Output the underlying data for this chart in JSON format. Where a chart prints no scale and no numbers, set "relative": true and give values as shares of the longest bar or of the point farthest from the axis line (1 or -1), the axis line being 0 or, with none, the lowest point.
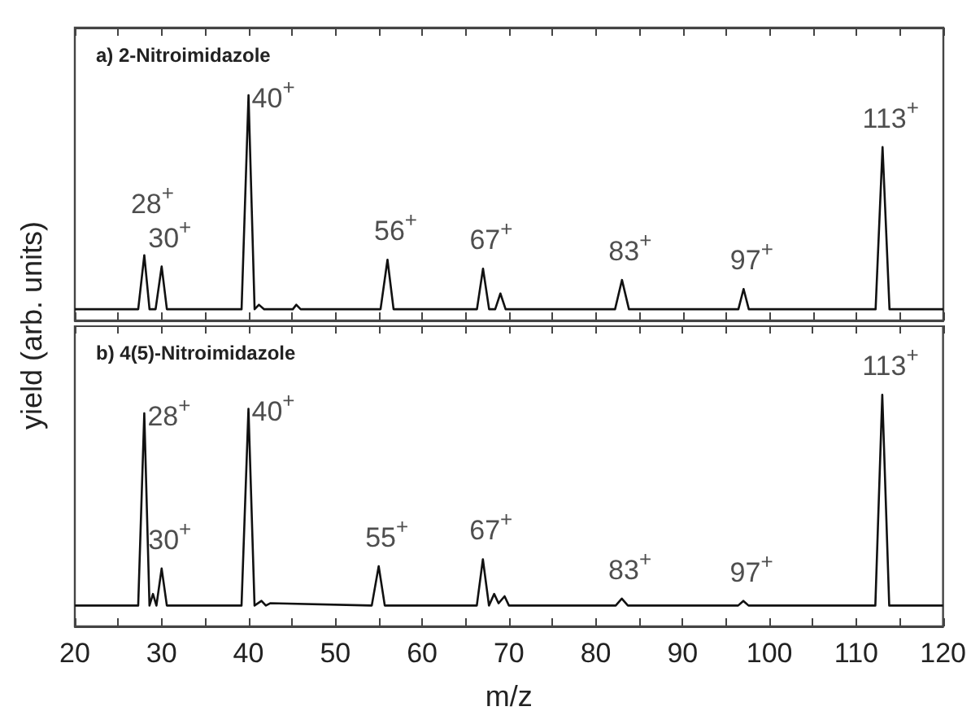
{
  "chart_data": [
    {
      "type": "line",
      "title": "a) 2-Nitroimidazole",
      "ylabel": "yield (arb. units)",
      "relative": true,
      "color": "#111111",
      "grid": false,
      "marker": "none",
      "line_style": "solid",
      "tick_labels": false,
      "xlim": [
        20,
        120
      ],
      "xticks": [
        20,
        {
          "value": 25,
          "label": null
        },
        30,
        {
          "value": 35,
          "label": null
        },
        40,
        {
          "value": 45,
          "label": null
        },
        50,
        {
          "value": 55,
          "label": null
        },
        60,
        {
          "value": 65,
          "label": null
        },
        70,
        {
          "value": 75,
          "label": null
        },
        80,
        {
          "value": 85,
          "label": null
        },
        90,
        {
          "value": 95,
          "label": null
        },
        100,
        {
          "value": 105,
          "label": null
        },
        110,
        {
          "value": 115,
          "label": null
        },
        120
      ],
      "x": [
        20,
        27.3,
        28,
        28.6,
        29.3,
        30,
        30.6,
        39.2,
        40,
        40.7,
        41.2,
        41.8,
        45.1,
        45.5,
        46,
        55.2,
        56,
        56.7,
        66.3,
        67,
        67.7,
        68.4,
        69,
        69.6,
        82.2,
        83,
        83.8,
        96.4,
        97,
        97.6,
        112.2,
        113,
        113.8,
        120
      ],
      "values": [
        0.05,
        0.05,
        0.29,
        0.05,
        0.05,
        0.24,
        0.05,
        0.05,
        1,
        0.05,
        0.07,
        0.05,
        0.05,
        0.07,
        0.05,
        0.05,
        0.27,
        0.05,
        0.05,
        0.23,
        0.05,
        0.05,
        0.12,
        0.05,
        0.05,
        0.18,
        0.05,
        0.05,
        0.14,
        0.05,
        0.05,
        0.77,
        0.05,
        0.05
      ],
      "annotations": [
        {
          "text": "28$^{+}$",
          "x": 28,
          "y": 0.29
        },
        {
          "text": "30$^{+}$",
          "x": 30,
          "y": 0.24
        },
        {
          "text": "40$^{+}$",
          "x": 40,
          "y": 1
        },
        {
          "text": "56$^{+}$",
          "x": 56,
          "y": 0.27
        },
        {
          "text": "67$^{+}$",
          "x": 67,
          "y": 0.23
        },
        {
          "text": "83$^{+}$",
          "x": 83,
          "y": 0.18
        },
        {
          "text": "97$^{+}$",
          "x": 97,
          "y": 0.14
        },
        {
          "text": "113$^{+}$",
          "x": 113,
          "y": 0.77
        }
      ]
    },
    {
      "type": "line",
      "title": "b) 4(5)-Nitroimidazole",
      "xlabel": "m/z",
      "relative": true,
      "color": "#111111",
      "grid": false,
      "marker": "none",
      "line_style": "solid",
      "tick_labels": "x",
      "xlim": [
        20,
        120
      ],
      "xticks": [
        20,
        {
          "value": 25,
          "label": null
        },
        30,
        {
          "value": 35,
          "label": null
        },
        40,
        {
          "value": 45,
          "label": null
        },
        50,
        {
          "value": 55,
          "label": null
        },
        60,
        {
          "value": 65,
          "label": null
        },
        70,
        {
          "value": 75,
          "label": null
        },
        80,
        {
          "value": 85,
          "label": null
        },
        90,
        {
          "value": 95,
          "label": null
        },
        100,
        {
          "value": 105,
          "label": null
        },
        110,
        {
          "value": 115,
          "label": null
        },
        120
      ],
      "x": [
        20,
        27.3,
        28,
        28.6,
        29,
        29.4,
        30,
        30.6,
        39.2,
        40,
        40.7,
        41.5,
        42,
        42.5,
        54.2,
        55,
        55.7,
        66.3,
        67,
        67.7,
        68.3,
        68.8,
        69.5,
        70,
        82.3,
        83,
        83.7,
        96.4,
        97,
        97.6,
        112.2,
        113,
        113.8,
        120
      ],
      "values": [
        0.09,
        0.09,
        0.92,
        0.09,
        0.14,
        0.09,
        0.25,
        0.09,
        0.09,
        0.94,
        0.09,
        0.11,
        0.09,
        0.1,
        0.09,
        0.26,
        0.09,
        0.09,
        0.29,
        0.09,
        0.14,
        0.1,
        0.13,
        0.09,
        0.09,
        0.12,
        0.09,
        0.09,
        0.11,
        0.09,
        0.09,
        1,
        0.09,
        0.09
      ],
      "annotations": [
        {
          "text": "28$^{+}$",
          "x": 28,
          "y": 0.92
        },
        {
          "text": "30$^{+}$",
          "x": 30,
          "y": 0.25
        },
        {
          "text": "40$^{+}$",
          "x": 40,
          "y": 0.94
        },
        {
          "text": "55$^{+}$",
          "x": 55,
          "y": 0.26
        },
        {
          "text": "67$^{+}$",
          "x": 67,
          "y": 0.29
        },
        {
          "text": "83$^{+}$",
          "x": 83,
          "y": 0.12
        },
        {
          "text": "97$^{+}$",
          "x": 97,
          "y": 0.11
        },
        {
          "text": "113$^{+}$",
          "x": 113,
          "y": 1
        }
      ]
    }
  ]
}
